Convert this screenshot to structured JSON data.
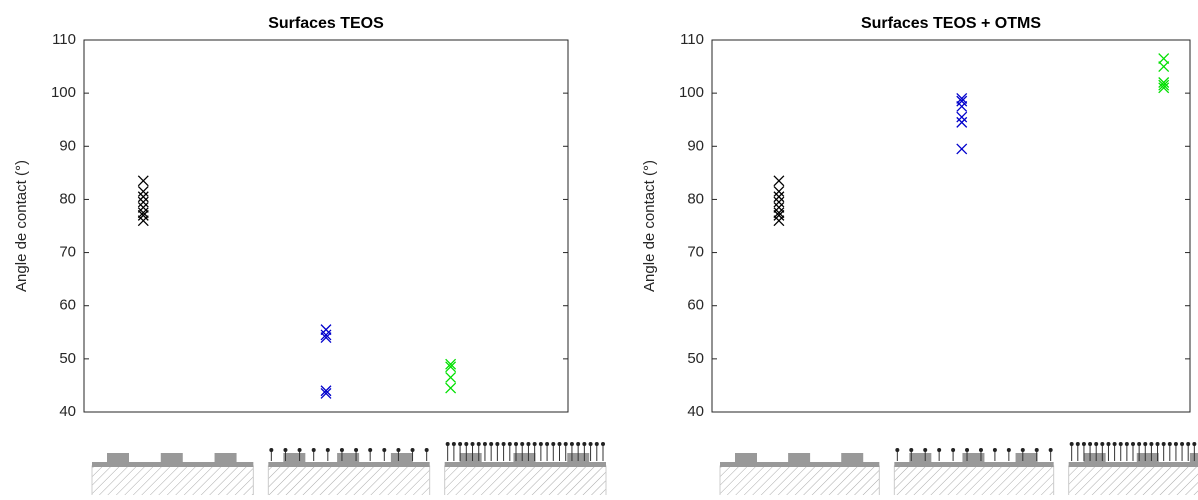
{
  "chart_data": [
    {
      "type": "scatter",
      "title": "Surfaces TEOS",
      "y_label": "Angle de contact (°)",
      "xlim": [
        0,
        4
      ],
      "ylim": [
        40,
        110
      ],
      "yticks": [
        40,
        50,
        60,
        70,
        80,
        90,
        100,
        110
      ],
      "series": [
        {
          "color": "#000000",
          "x": [
            0.49,
            0.49,
            0.49,
            0.49,
            0.49,
            0.49,
            0.49,
            0.49
          ],
          "values": [
            83.5,
            81.5,
            80.5,
            79.5,
            78.5,
            77.5,
            77,
            76
          ]
        },
        {
          "color": "#0000cc",
          "x": [
            2.0,
            2.0,
            2.0,
            2.0,
            2.0
          ],
          "values": [
            55.5,
            54.5,
            54,
            44,
            43.5
          ]
        },
        {
          "color": "#00e000",
          "x": [
            3.03,
            3.03,
            3.03,
            3.03
          ],
          "values": [
            49,
            48.5,
            46.5,
            44.5
          ]
        }
      ]
    },
    {
      "type": "scatter",
      "title": "Surfaces TEOS + OTMS",
      "y_label": "Angle de contact (°)",
      "xlim": [
        0,
        4
      ],
      "ylim": [
        40,
        110
      ],
      "yticks": [
        40,
        50,
        60,
        70,
        80,
        90,
        100,
        110
      ],
      "series": [
        {
          "color": "#000000",
          "x": [
            0.56,
            0.56,
            0.56,
            0.56,
            0.56,
            0.56,
            0.56,
            0.56
          ],
          "values": [
            83.5,
            81.5,
            80.5,
            79.5,
            78.5,
            77.5,
            77,
            76
          ]
        },
        {
          "color": "#0000cc",
          "x": [
            2.09,
            2.09,
            2.09,
            2.09,
            2.09,
            2.09
          ],
          "values": [
            99,
            98.5,
            97.5,
            95.5,
            94.5,
            89.5
          ]
        },
        {
          "color": "#00e000",
          "x": [
            3.78,
            3.78,
            3.78,
            3.78,
            3.78
          ],
          "values": [
            106.5,
            105,
            102,
            101.5,
            101
          ]
        }
      ]
    }
  ]
}
